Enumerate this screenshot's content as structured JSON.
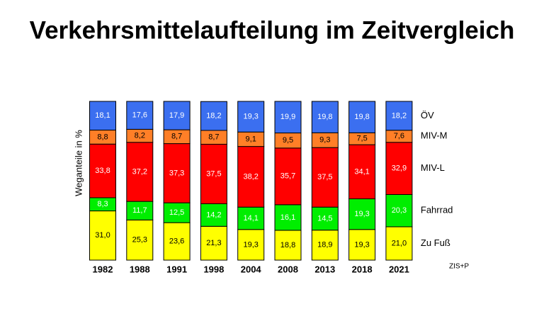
{
  "chart_data": {
    "type": "stacked_bar",
    "title": "Verkehrsmittelaufteilung im Zeitvergleich",
    "y_label": "Weganteile in %",
    "source": "ZIS+P",
    "categories": [
      "1982",
      "1988",
      "1991",
      "1998",
      "2004",
      "2008",
      "2013",
      "2018",
      "2021"
    ],
    "series": [
      {
        "name": "Zu Fuß",
        "color": "#ffff00",
        "values": [
          31.0,
          25.3,
          23.6,
          21.3,
          19.3,
          18.8,
          18.9,
          19.3,
          21.0
        ],
        "value_labels": [
          "31,0",
          "25,3",
          "23,6",
          "21,3",
          "19,3",
          "18,8",
          "18,9",
          "19,3",
          "21,0"
        ]
      },
      {
        "name": "Fahrrad",
        "color": "#00ee00",
        "values": [
          8.3,
          11.7,
          12.5,
          14.2,
          14.1,
          16.1,
          14.5,
          19.3,
          20.3
        ],
        "value_labels": [
          "8,3",
          "11,7",
          "12,5",
          "14,2",
          "14,1",
          "16,1",
          "14,5",
          "19,3",
          "20,3"
        ]
      },
      {
        "name": "MIV-L",
        "color": "#ff0000",
        "values": [
          33.8,
          37.2,
          37.3,
          37.5,
          38.2,
          35.7,
          37.5,
          34.1,
          32.9
        ],
        "value_labels": [
          "33,8",
          "37,2",
          "37,3",
          "37,5",
          "38,2",
          "35,7",
          "37,5",
          "34,1",
          "32,9"
        ]
      },
      {
        "name": "MIV-M",
        "color": "#ff7f27",
        "values": [
          8.8,
          8.2,
          8.7,
          8.7,
          9.1,
          9.5,
          9.3,
          7.5,
          7.6
        ],
        "value_labels": [
          "8,8",
          "8,2",
          "8,7",
          "8,7",
          "9,1",
          "9,5",
          "9,3",
          "7,5",
          "7,6"
        ]
      },
      {
        "name": "ÖV",
        "color": "#3b6ff0",
        "values": [
          18.1,
          17.6,
          17.9,
          18.2,
          19.3,
          19.9,
          19.8,
          19.8,
          18.2
        ],
        "value_labels": [
          "18,1",
          "17,6",
          "17,9",
          "18,2",
          "19,3",
          "19,9",
          "19,8",
          "19,8",
          "18,2"
        ]
      }
    ]
  }
}
